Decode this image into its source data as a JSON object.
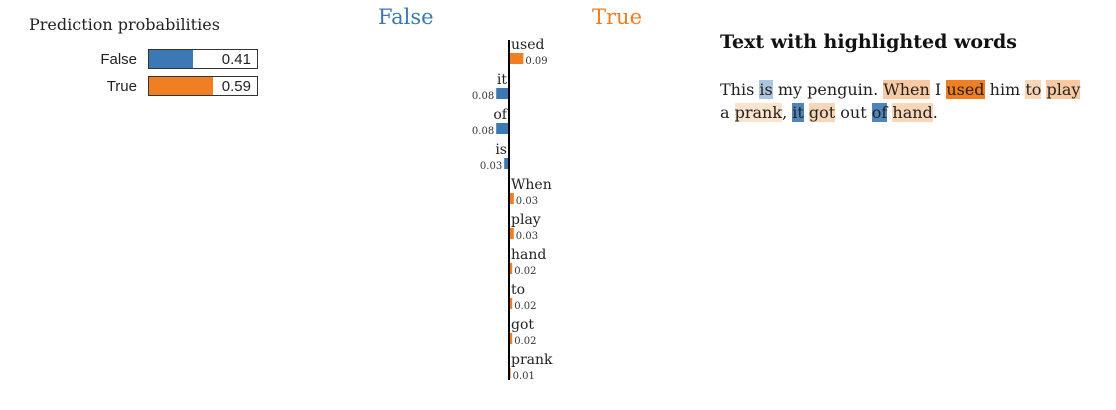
{
  "probabilities": {
    "title": "Prediction probabilities",
    "rows": [
      {
        "label": "False",
        "value": 0.41,
        "display": "0.41",
        "color": "#3c78b4"
      },
      {
        "label": "True",
        "value": 0.59,
        "display": "0.59",
        "color": "#f07e22"
      }
    ]
  },
  "class_labels": {
    "negative": "False",
    "positive": "True",
    "negative_color": "#3c78b4",
    "positive_color": "#f07e22"
  },
  "chart_data": {
    "type": "bar",
    "orientation": "horizontal-diverging",
    "categories": [
      "used",
      "it",
      "of",
      "is",
      "When",
      "play",
      "hand",
      "to",
      "got",
      "prank"
    ],
    "values": [
      0.09,
      -0.08,
      -0.08,
      -0.03,
      0.03,
      0.03,
      0.02,
      0.02,
      0.02,
      0.01
    ],
    "value_labels": [
      "0.09",
      "0.08",
      "0.08",
      "0.03",
      "0.03",
      "0.03",
      "0.02",
      "0.02",
      "0.02",
      "0.01"
    ],
    "negative_class": "False",
    "positive_class": "True",
    "colors": {
      "negative": "#3c78b4",
      "positive": "#f07e22"
    }
  },
  "text_panel": {
    "title": "Text with highlighted words",
    "tokens": [
      {
        "t": "This",
        "w": 0
      },
      {
        "t": " ",
        "w": 0
      },
      {
        "t": "is",
        "w": -0.03
      },
      {
        "t": " my penguin. ",
        "w": 0
      },
      {
        "t": "When",
        "w": 0.03
      },
      {
        "t": " I ",
        "w": 0
      },
      {
        "t": "used",
        "w": 0.09
      },
      {
        "t": " him ",
        "w": 0
      },
      {
        "t": "to",
        "w": 0.02
      },
      {
        "t": " ",
        "w": 0
      },
      {
        "t": "play",
        "w": 0.03
      },
      {
        "t": " a ",
        "w": 0
      },
      {
        "t": "prank",
        "w": 0.01
      },
      {
        "t": ", ",
        "w": 0
      },
      {
        "t": "it",
        "w": -0.08
      },
      {
        "t": " ",
        "w": 0
      },
      {
        "t": "got",
        "w": 0.02
      },
      {
        "t": " out ",
        "w": 0
      },
      {
        "t": "of",
        "w": -0.08
      },
      {
        "t": " ",
        "w": 0
      },
      {
        "t": "hand",
        "w": 0.02
      },
      {
        "t": ".",
        "w": 0
      }
    ]
  }
}
